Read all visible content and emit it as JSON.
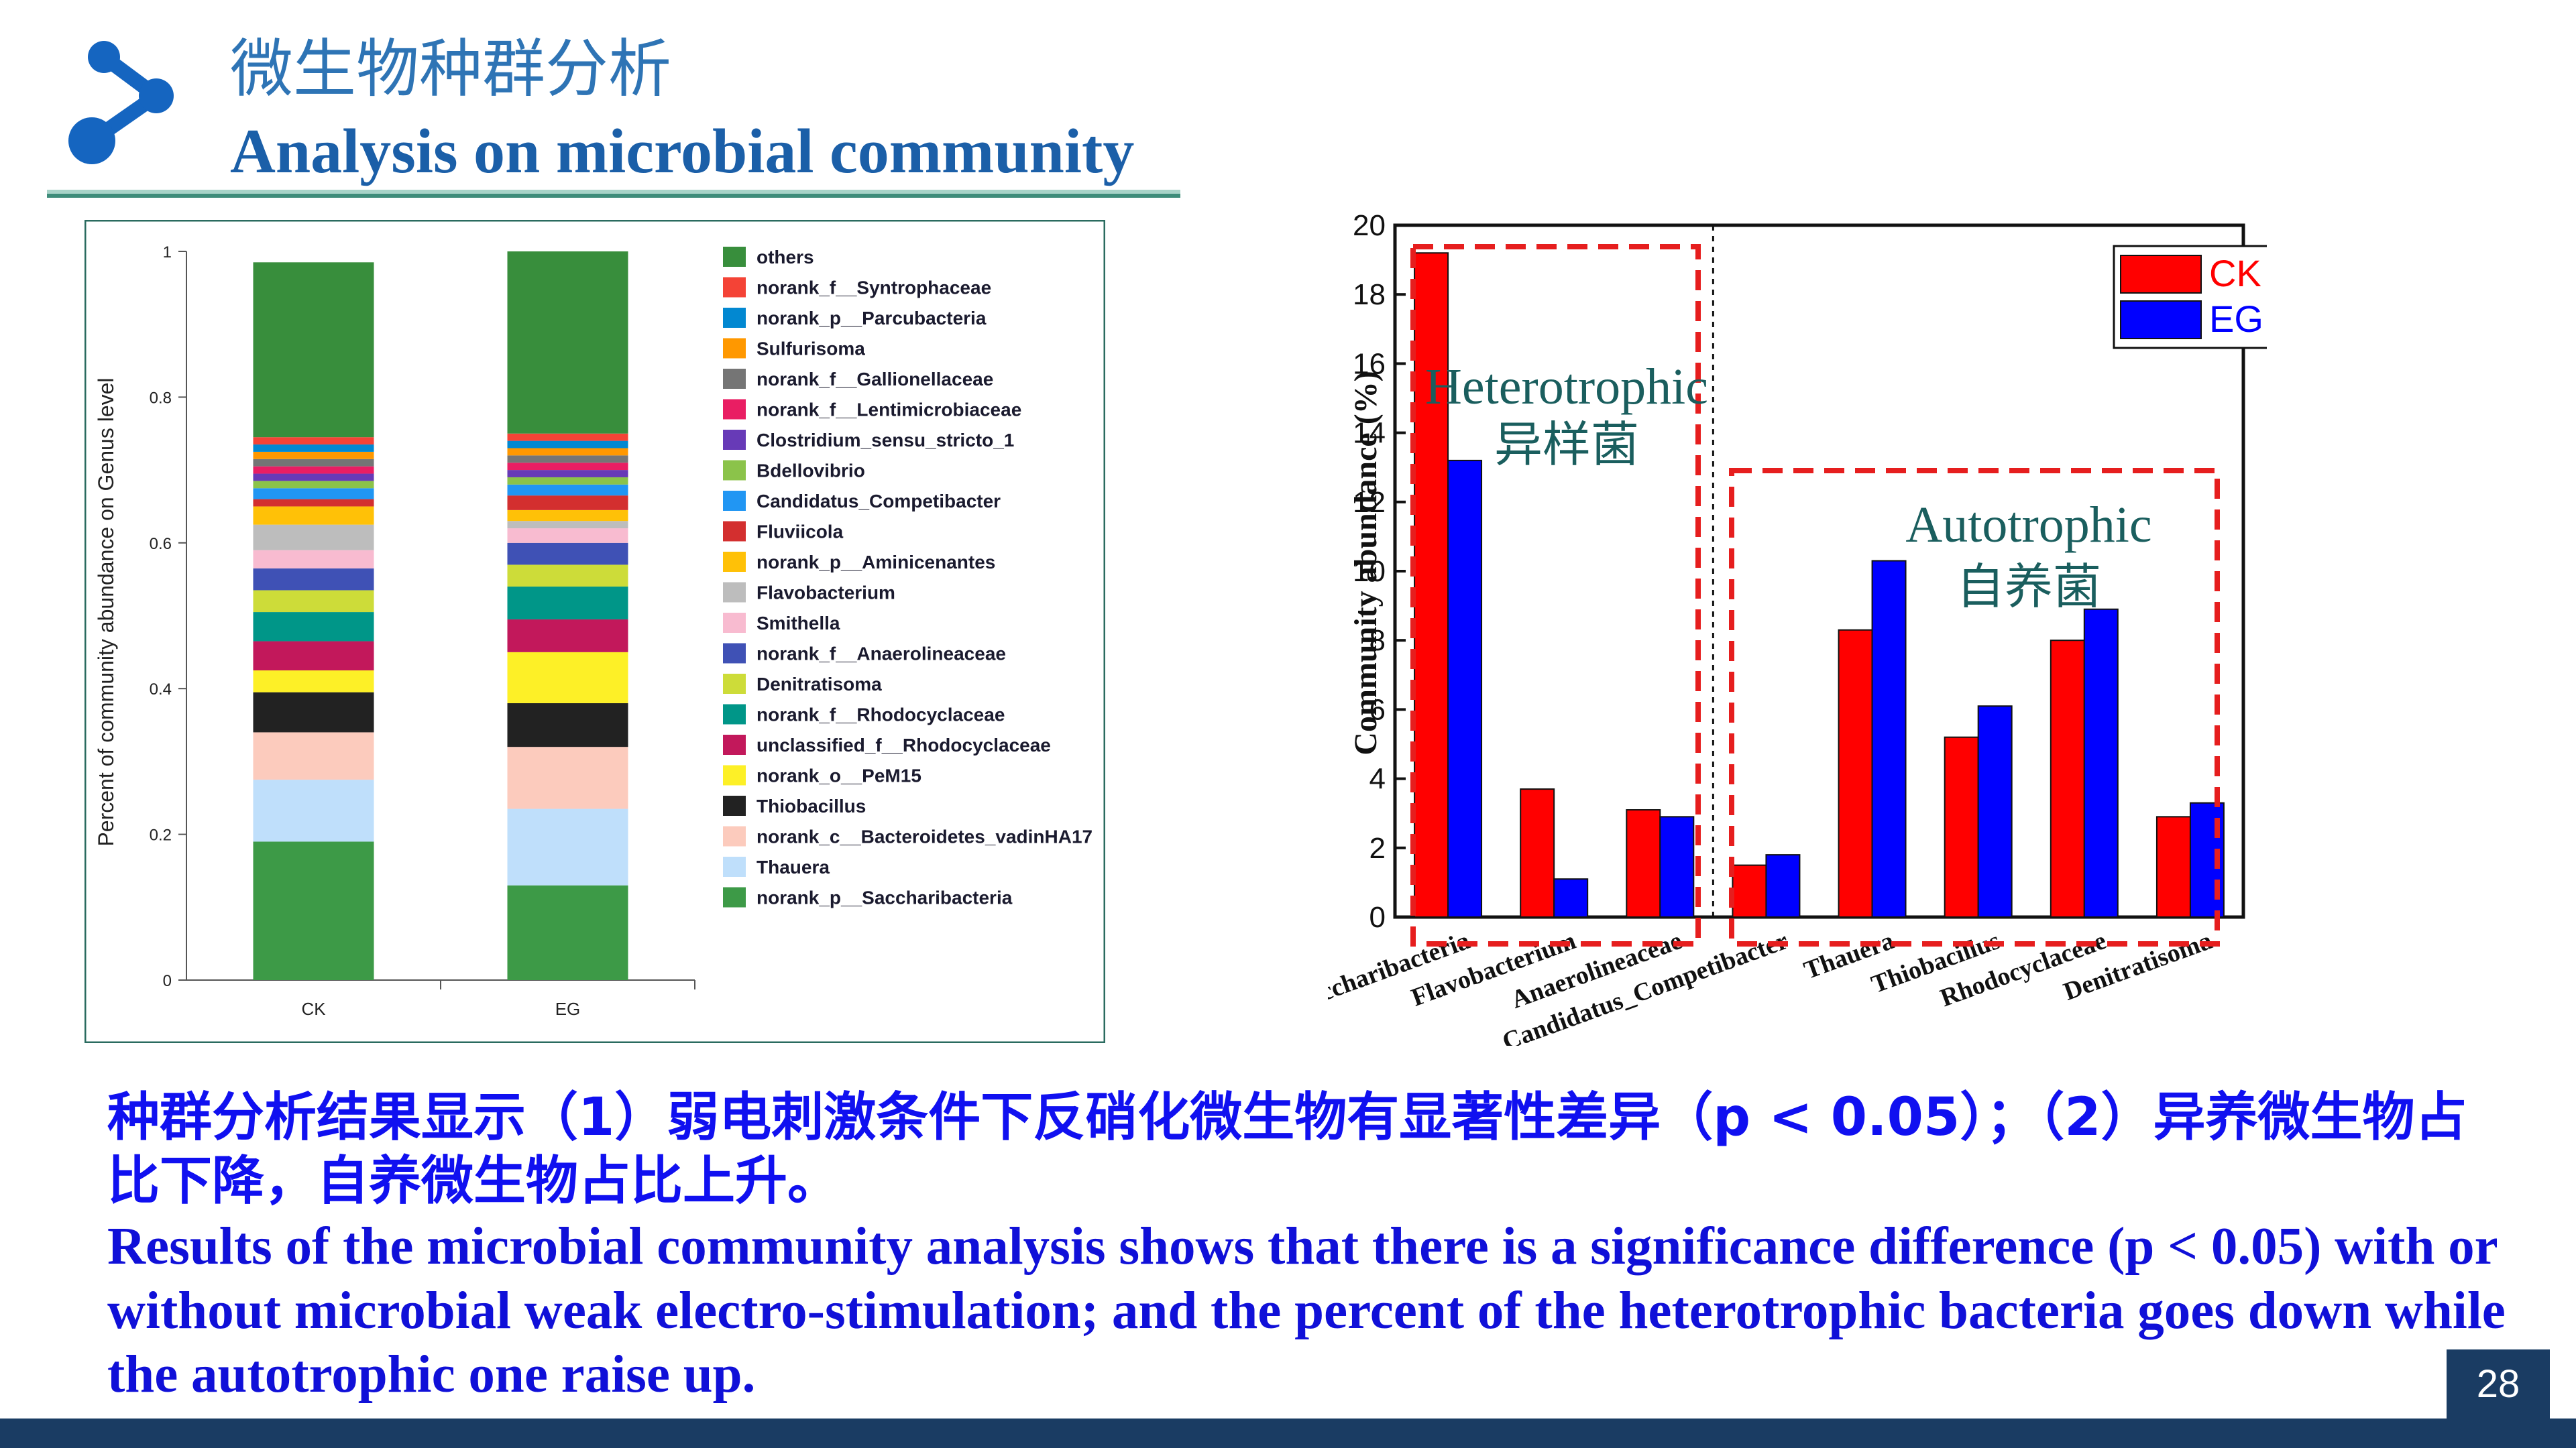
{
  "header": {
    "title_zh": "微生物种群分析",
    "title_en": "Analysis on microbial community",
    "accent_color": "#2e74b5",
    "logo_icon": "connected-nodes-icon"
  },
  "genus_chart": {
    "type": "bar",
    "stacked": true,
    "ylabel": "Percent of community abundance on Genus level",
    "ylim": [
      0,
      1
    ],
    "yticks": [
      "0",
      "0.2",
      "0.4",
      "0.6",
      "0.8",
      "1"
    ],
    "categories": [
      "CK",
      "EG"
    ],
    "series": [
      {
        "name": "norank_p__Saccharibacteria",
        "color": "#3d9a47",
        "values": [
          0.19,
          0.13
        ]
      },
      {
        "name": "Thauera",
        "color": "#bfdffb",
        "values": [
          0.085,
          0.105
        ]
      },
      {
        "name": "norank_c__Bacteroidetes_vadinHA17",
        "color": "#fccbbd",
        "values": [
          0.065,
          0.085
        ]
      },
      {
        "name": "Thiobacillus",
        "color": "#222222",
        "values": [
          0.055,
          0.06
        ]
      },
      {
        "name": "norank_o__PeM15",
        "color": "#fdf027",
        "values": [
          0.03,
          0.07
        ]
      },
      {
        "name": "unclassified_f__Rhodocyclaceae",
        "color": "#c2185b",
        "values": [
          0.04,
          0.045
        ]
      },
      {
        "name": "norank_f__Rhodocyclaceae",
        "color": "#009688",
        "values": [
          0.04,
          0.045
        ]
      },
      {
        "name": "Denitratisoma",
        "color": "#cddc39",
        "values": [
          0.03,
          0.03
        ]
      },
      {
        "name": "norank_f__Anaerolineaceae",
        "color": "#3f51b5",
        "values": [
          0.03,
          0.03
        ]
      },
      {
        "name": "Smithella",
        "color": "#f8bbd0",
        "values": [
          0.025,
          0.02
        ]
      },
      {
        "name": "Flavobacterium",
        "color": "#bdbdbd",
        "values": [
          0.035,
          0.01
        ]
      },
      {
        "name": "norank_p__Aminicenantes",
        "color": "#ffc107",
        "values": [
          0.025,
          0.015
        ]
      },
      {
        "name": "Fluviicola",
        "color": "#d32f2f",
        "values": [
          0.01,
          0.02
        ]
      },
      {
        "name": "Candidatus_Competibacter",
        "color": "#2196f3",
        "values": [
          0.015,
          0.015
        ]
      },
      {
        "name": "Bdellovibrio",
        "color": "#8bc34a",
        "values": [
          0.01,
          0.01
        ]
      },
      {
        "name": "Clostridium_sensu_stricto_1",
        "color": "#673ab7",
        "values": [
          0.01,
          0.01
        ]
      },
      {
        "name": "norank_f__Lentimicrobiaceae",
        "color": "#e91e63",
        "values": [
          0.01,
          0.01
        ]
      },
      {
        "name": "norank_f__Gallionellaceae",
        "color": "#757575",
        "values": [
          0.01,
          0.01
        ]
      },
      {
        "name": "Sulfurisoma",
        "color": "#ff9800",
        "values": [
          0.01,
          0.01
        ]
      },
      {
        "name": "norank_p__Parcubacteria",
        "color": "#0288d1",
        "values": [
          0.01,
          0.01
        ]
      },
      {
        "name": "norank_f__Syntrophaceae",
        "color": "#f44336",
        "values": [
          0.01,
          0.01
        ]
      },
      {
        "name": "others",
        "color": "#388e3c",
        "values": [
          0.24,
          0.25
        ]
      }
    ]
  },
  "chart_data": {
    "type": "bar",
    "categories": [
      "Saccharibacteria",
      "Flavobacterium",
      "Anaerolineaceae",
      "Candidatus_Competibacter",
      "Thauera",
      "Thiobacillus",
      "Rhodocyclaceae",
      "Denitratisoma"
    ],
    "series": [
      {
        "name": "CK",
        "color": "#ff0000",
        "values": [
          19.2,
          3.7,
          3.1,
          1.5,
          8.3,
          5.2,
          8.0,
          2.9
        ]
      },
      {
        "name": "EG",
        "color": "#0000ff",
        "values": [
          13.2,
          1.1,
          2.9,
          1.8,
          10.3,
          6.1,
          8.9,
          3.3
        ]
      }
    ],
    "xlabel": "",
    "ylabel": "Community abundance (%)",
    "ylim": [
      0,
      20
    ],
    "yticks": [
      "0",
      "2",
      "4",
      "6",
      "8",
      "10",
      "12",
      "14",
      "16",
      "18",
      "20"
    ],
    "legend": "top-right",
    "grid": false,
    "annotations": [
      {
        "label_en": "Heterotrophic",
        "label_zh": "异样菌",
        "categories": [
          "Saccharibacteria",
          "Flavobacterium",
          "Anaerolineaceae"
        ]
      },
      {
        "label_en": "Autotrophic",
        "label_zh": "自养菌",
        "categories": [
          "Candidatus_Competibacter",
          "Thauera",
          "Thiobacillus",
          "Rhodocyclaceae",
          "Denitratisoma"
        ]
      }
    ]
  },
  "summary": {
    "zh_line1": "种群分析结果显示（1）弱电刺激条件下反硝化微生物有显著性差异（p < 0.05）；（2）异养微生物占",
    "zh_line2": "比下降，自养微生物占比上升。",
    "en": "Results of the microbial community analysis shows that there is a significance difference (p < 0.05) with or without microbial weak electro-stimulation; and the percent of the heterotrophic bacteria goes down while the autotrophic one raise up."
  },
  "footer": {
    "page_number": "28"
  }
}
